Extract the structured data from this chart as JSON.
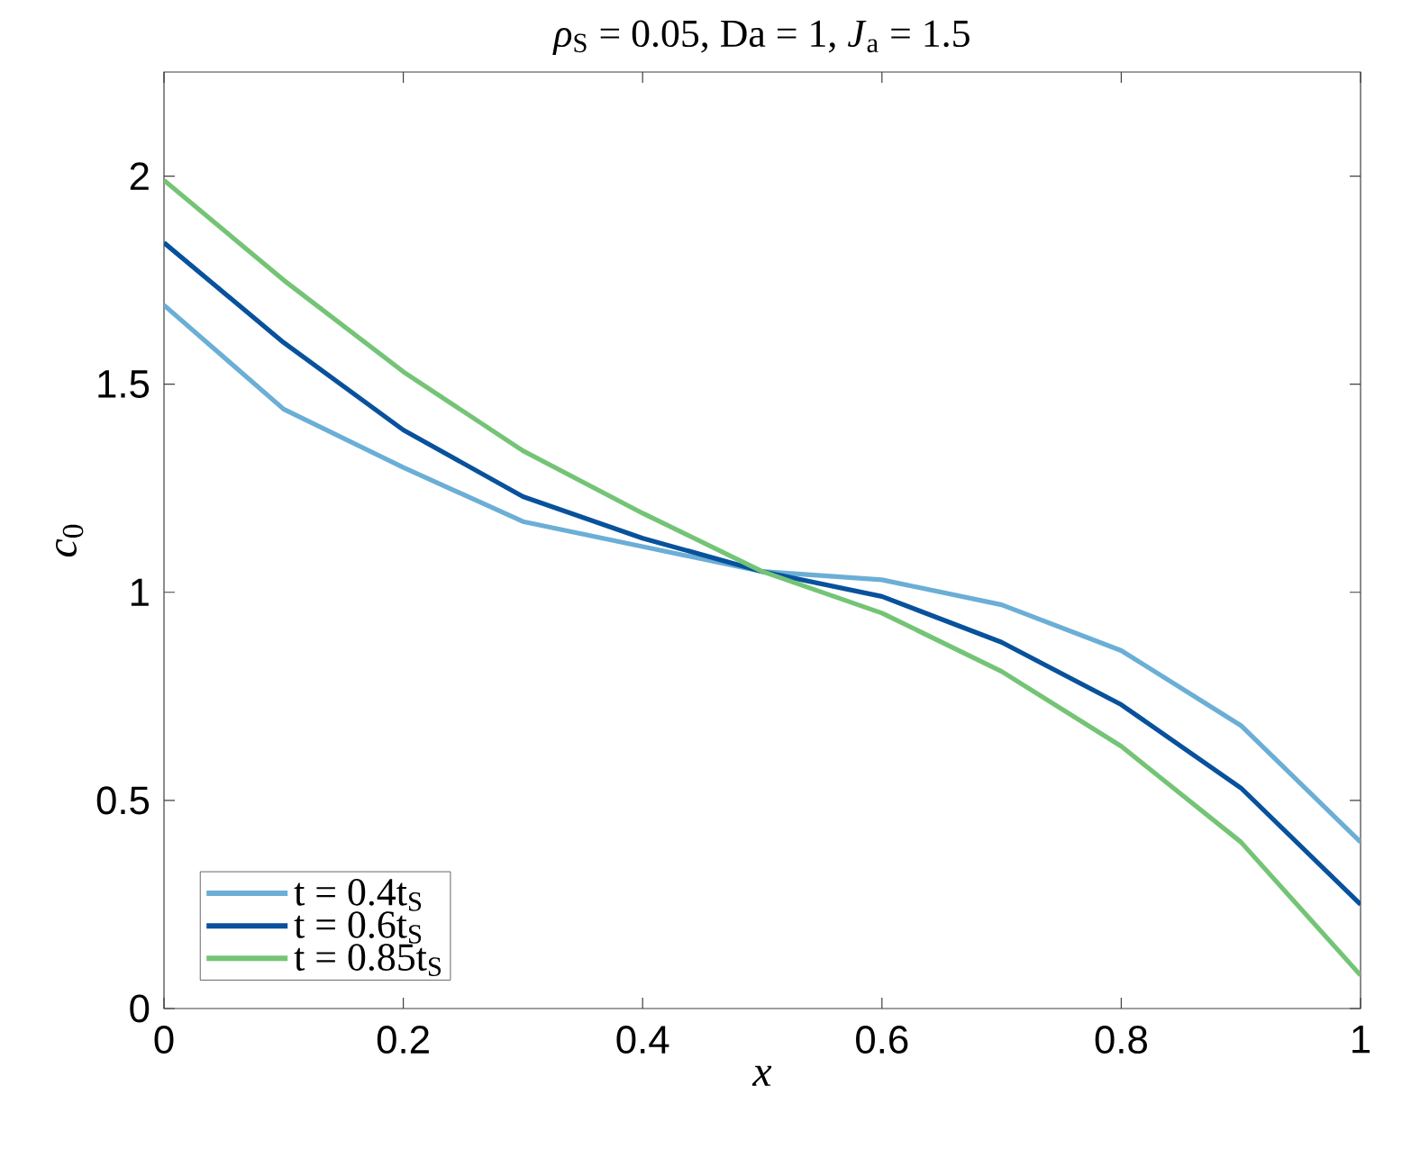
{
  "chart_data": {
    "type": "line",
    "title": "*ρ*$_{S}$ = 0.05, Da = 1, *J*$_{a}$ = 1.5",
    "xlabel": "*x*",
    "ylabel": "*c*$_{0}$",
    "x": [
      0,
      0.1,
      0.2,
      0.3,
      0.4,
      0.5,
      0.6,
      0.7,
      0.8,
      0.9,
      1
    ],
    "series": [
      {
        "name": "t = 0.4t$_{S}$",
        "color": "#6baed6",
        "values": [
          1.69,
          1.44,
          1.3,
          1.17,
          1.11,
          1.05,
          1.03,
          0.97,
          0.86,
          0.68,
          0.4
        ]
      },
      {
        "name": "t = 0.6t$_{S}$",
        "color": "#08519c",
        "values": [
          1.84,
          1.6,
          1.39,
          1.23,
          1.13,
          1.05,
          0.99,
          0.88,
          0.73,
          0.53,
          0.25
        ]
      },
      {
        "name": "t = 0.85t$_{S}$",
        "color": "#74c476",
        "values": [
          1.99,
          1.75,
          1.53,
          1.34,
          1.19,
          1.05,
          0.95,
          0.81,
          0.63,
          0.4,
          0.08
        ]
      }
    ],
    "xlim": [
      0,
      1
    ],
    "ylim": [
      0,
      2.25
    ],
    "xticks": [
      0,
      0.2,
      0.4,
      0.6,
      0.8,
      1
    ],
    "yticks": [
      0,
      0.5,
      1,
      1.5,
      2
    ],
    "grid": false,
    "legend": "bottom left",
    "marker": "none",
    "line_style": "solid"
  }
}
